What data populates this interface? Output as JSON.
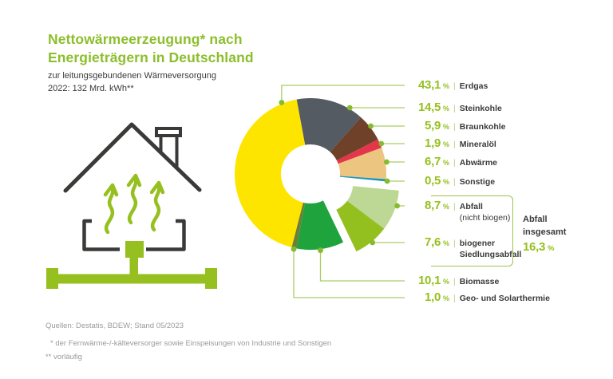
{
  "header": {
    "title_line1": "Nettowärmeerzeugung* nach",
    "title_line2": "Energieträgern in Deutschland",
    "subtitle_line1": "zur leitungsgebundenen Wärmeversorgung",
    "subtitle_line2": "2022: 132 Mrd. kWh**"
  },
  "footer": {
    "sources": "Quellen: Destatis, BDEW; Stand 05/2023",
    "note1": "* der Fernwärme-/-kälteversorger sowie Einspeisungen von Industrie und Sonstigen",
    "note2": "** vorläufig"
  },
  "colors": {
    "title_green": "#8cbe2c",
    "accent_green": "#95c01f",
    "leader_line_green": "#a9cd63",
    "leader_dot_green": "#85bc2f",
    "bracket_green": "#9cc44d",
    "text_dark": "#3a3a39",
    "text_gray": "#9b9b9a",
    "house_dark": "#3a3a39",
    "pipe_green": "#95c01f"
  },
  "chart_data": {
    "type": "pie",
    "variant": "donut",
    "unit": "%",
    "title": "Nettowärmeerzeugung nach Energieträgern in Deutschland 2022",
    "total": "132 Mrd. kWh",
    "slices": [
      {
        "label": "Erdgas",
        "value": 43.1,
        "value_label": "43,1",
        "color": "#fde500"
      },
      {
        "label": "Steinkohle",
        "value": 14.5,
        "value_label": "14,5",
        "color": "#555b62"
      },
      {
        "label": "Braunkohle",
        "value": 5.9,
        "value_label": "5,9",
        "color": "#6e4128"
      },
      {
        "label": "Mineralöl",
        "value": 1.9,
        "value_label": "1,9",
        "color": "#e4354a"
      },
      {
        "label": "Abwärme",
        "value": 6.7,
        "value_label": "6,7",
        "color": "#ecc581"
      },
      {
        "label": "Sonstige",
        "value": 0.5,
        "value_label": "0,5",
        "color": "#1e96b8"
      },
      {
        "label": "Abfall",
        "label_line2": "(nicht biogen)",
        "label_line2_bold": false,
        "value": 8.7,
        "value_label": "8,7",
        "color": "#bdd795",
        "exploded": true
      },
      {
        "label": "biogener",
        "label_line2": "Siedlungsabfall",
        "label_line2_bold": true,
        "value": 7.6,
        "value_label": "7,6",
        "color": "#94c01f",
        "exploded": true
      },
      {
        "label": "Biomasse",
        "value": 10.1,
        "value_label": "10,1",
        "color": "#1fa33c"
      },
      {
        "label": "Geo- und Solarthermie",
        "value": 1.0,
        "value_label": "1,0",
        "color": "#6e7f35"
      }
    ],
    "group_annotation": {
      "line1": "Abfall",
      "line2": "insgesamt",
      "value_label": "16,3",
      "unit": "%"
    }
  }
}
